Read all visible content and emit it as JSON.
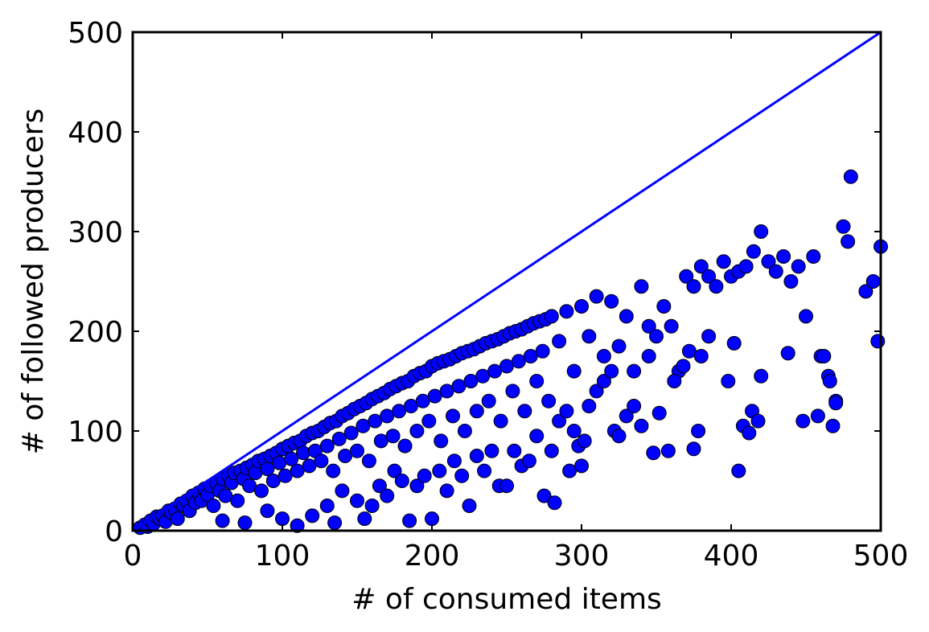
{
  "chart_data": {
    "type": "scatter",
    "title": "",
    "xlabel": "# of consumed items",
    "ylabel": "# of followed producers",
    "xlim": [
      0,
      500
    ],
    "ylim": [
      0,
      500
    ],
    "xticks": [
      "0",
      "100",
      "200",
      "300",
      "400",
      "500"
    ],
    "yticks": [
      "0",
      "100",
      "200",
      "300",
      "400",
      "500"
    ],
    "grid": false,
    "legend": "none",
    "colors": {
      "marker_fill": "#0000ff",
      "marker_edge": "#000000",
      "line": "#0000ff"
    },
    "reference_line": {
      "type": "y=x",
      "points": [
        [
          0,
          0
        ],
        [
          500,
          500
        ]
      ]
    },
    "series": [
      {
        "points": [
          [
            5,
            3
          ],
          [
            8,
            6
          ],
          [
            10,
            4
          ],
          [
            12,
            10
          ],
          [
            14,
            7
          ],
          [
            16,
            14
          ],
          [
            18,
            12
          ],
          [
            20,
            15
          ],
          [
            22,
            9
          ],
          [
            24,
            20
          ],
          [
            26,
            18
          ],
          [
            28,
            22
          ],
          [
            30,
            12
          ],
          [
            32,
            27
          ],
          [
            34,
            25
          ],
          [
            36,
            30
          ],
          [
            38,
            20
          ],
          [
            40,
            35
          ],
          [
            42,
            28
          ],
          [
            44,
            38
          ],
          [
            46,
            30
          ],
          [
            48,
            42
          ],
          [
            50,
            36
          ],
          [
            52,
            45
          ],
          [
            54,
            25
          ],
          [
            56,
            48
          ],
          [
            58,
            40
          ],
          [
            60,
            52
          ],
          [
            62,
            35
          ],
          [
            64,
            55
          ],
          [
            66,
            48
          ],
          [
            68,
            58
          ],
          [
            70,
            30
          ],
          [
            72,
            60
          ],
          [
            74,
            52
          ],
          [
            76,
            63
          ],
          [
            78,
            45
          ],
          [
            80,
            66
          ],
          [
            82,
            58
          ],
          [
            84,
            70
          ],
          [
            86,
            40
          ],
          [
            88,
            72
          ],
          [
            90,
            62
          ],
          [
            92,
            75
          ],
          [
            94,
            50
          ],
          [
            96,
            78
          ],
          [
            98,
            68
          ],
          [
            100,
            82
          ],
          [
            102,
            55
          ],
          [
            104,
            85
          ],
          [
            106,
            72
          ],
          [
            108,
            88
          ],
          [
            110,
            60
          ],
          [
            112,
            90
          ],
          [
            114,
            78
          ],
          [
            116,
            95
          ],
          [
            118,
            65
          ],
          [
            120,
            98
          ],
          [
            122,
            80
          ],
          [
            124,
            100
          ],
          [
            126,
            70
          ],
          [
            128,
            104
          ],
          [
            130,
            85
          ],
          [
            132,
            108
          ],
          [
            134,
            60
          ],
          [
            136,
            110
          ],
          [
            138,
            92
          ],
          [
            140,
            115
          ],
          [
            142,
            75
          ],
          [
            144,
            118
          ],
          [
            146,
            98
          ],
          [
            148,
            122
          ],
          [
            150,
            80
          ],
          [
            152,
            125
          ],
          [
            154,
            105
          ],
          [
            156,
            128
          ],
          [
            158,
            70
          ],
          [
            160,
            132
          ],
          [
            162,
            110
          ],
          [
            164,
            135
          ],
          [
            166,
            90
          ],
          [
            168,
            138
          ],
          [
            170,
            115
          ],
          [
            172,
            142
          ],
          [
            174,
            95
          ],
          [
            176,
            145
          ],
          [
            178,
            120
          ],
          [
            180,
            148
          ],
          [
            182,
            85
          ],
          [
            184,
            150
          ],
          [
            186,
            125
          ],
          [
            188,
            155
          ],
          [
            190,
            100
          ],
          [
            192,
            158
          ],
          [
            194,
            130
          ],
          [
            196,
            160
          ],
          [
            198,
            110
          ],
          [
            200,
            165
          ],
          [
            202,
            135
          ],
          [
            204,
            168
          ],
          [
            206,
            90
          ],
          [
            208,
            170
          ],
          [
            210,
            140
          ],
          [
            212,
            172
          ],
          [
            214,
            115
          ],
          [
            216,
            175
          ],
          [
            218,
            145
          ],
          [
            220,
            178
          ],
          [
            222,
            100
          ],
          [
            224,
            180
          ],
          [
            226,
            150
          ],
          [
            228,
            182
          ],
          [
            230,
            120
          ],
          [
            232,
            185
          ],
          [
            234,
            155
          ],
          [
            236,
            188
          ],
          [
            238,
            130
          ],
          [
            240,
            190
          ],
          [
            242,
            160
          ],
          [
            244,
            192
          ],
          [
            246,
            110
          ],
          [
            248,
            195
          ],
          [
            250,
            165
          ],
          [
            252,
            198
          ],
          [
            254,
            140
          ],
          [
            256,
            200
          ],
          [
            258,
            170
          ],
          [
            260,
            202
          ],
          [
            262,
            120
          ],
          [
            264,
            205
          ],
          [
            266,
            175
          ],
          [
            268,
            208
          ],
          [
            270,
            150
          ],
          [
            272,
            210
          ],
          [
            274,
            180
          ],
          [
            276,
            212
          ],
          [
            278,
            130
          ],
          [
            280,
            215
          ],
          [
            285,
            190
          ],
          [
            290,
            220
          ],
          [
            295,
            160
          ],
          [
            300,
            225
          ],
          [
            305,
            195
          ],
          [
            310,
            235
          ],
          [
            315,
            175
          ],
          [
            320,
            230
          ],
          [
            325,
            185
          ],
          [
            330,
            215
          ],
          [
            335,
            160
          ],
          [
            340,
            245
          ],
          [
            345,
            205
          ],
          [
            350,
            195
          ],
          [
            355,
            225
          ],
          [
            360,
            205
          ],
          [
            365,
            160
          ],
          [
            370,
            255
          ],
          [
            375,
            245
          ],
          [
            380,
            265
          ],
          [
            385,
            255
          ],
          [
            390,
            245
          ],
          [
            395,
            270
          ],
          [
            400,
            255
          ],
          [
            405,
            260
          ],
          [
            410,
            265
          ],
          [
            415,
            280
          ],
          [
            420,
            300
          ],
          [
            425,
            270
          ],
          [
            430,
            260
          ],
          [
            435,
            275
          ],
          [
            440,
            250
          ],
          [
            445,
            265
          ],
          [
            450,
            215
          ],
          [
            455,
            275
          ],
          [
            460,
            175
          ],
          [
            465,
            155
          ],
          [
            470,
            130
          ],
          [
            475,
            305
          ],
          [
            478,
            290
          ],
          [
            480,
            355
          ],
          [
            490,
            240
          ],
          [
            495,
            250
          ],
          [
            498,
            190
          ],
          [
            500,
            285
          ],
          [
            60,
            10
          ],
          [
            75,
            8
          ],
          [
            90,
            20
          ],
          [
            100,
            12
          ],
          [
            110,
            5
          ],
          [
            120,
            15
          ],
          [
            130,
            25
          ],
          [
            135,
            8
          ],
          [
            140,
            40
          ],
          [
            150,
            30
          ],
          [
            155,
            12
          ],
          [
            160,
            25
          ],
          [
            165,
            45
          ],
          [
            170,
            35
          ],
          [
            175,
            60
          ],
          [
            180,
            50
          ],
          [
            185,
            10
          ],
          [
            190,
            45
          ],
          [
            195,
            55
          ],
          [
            200,
            12
          ],
          [
            205,
            60
          ],
          [
            210,
            40
          ],
          [
            215,
            70
          ],
          [
            220,
            55
          ],
          [
            225,
            25
          ],
          [
            230,
            75
          ],
          [
            235,
            60
          ],
          [
            240,
            80
          ],
          [
            245,
            45
          ],
          [
            250,
            45
          ],
          [
            255,
            80
          ],
          [
            260,
            65
          ],
          [
            265,
            70
          ],
          [
            270,
            95
          ],
          [
            275,
            35
          ],
          [
            280,
            80
          ],
          [
            282,
            28
          ],
          [
            285,
            110
          ],
          [
            290,
            120
          ],
          [
            292,
            60
          ],
          [
            295,
            100
          ],
          [
            298,
            85
          ],
          [
            300,
            65
          ],
          [
            302,
            90
          ],
          [
            305,
            125
          ],
          [
            310,
            140
          ],
          [
            315,
            150
          ],
          [
            320,
            160
          ],
          [
            322,
            100
          ],
          [
            325,
            95
          ],
          [
            330,
            115
          ],
          [
            335,
            125
          ],
          [
            340,
            105
          ],
          [
            345,
            175
          ],
          [
            348,
            78
          ],
          [
            352,
            118
          ],
          [
            358,
            80
          ],
          [
            362,
            150
          ],
          [
            368,
            165
          ],
          [
            372,
            180
          ],
          [
            375,
            82
          ],
          [
            378,
            100
          ],
          [
            380,
            175
          ],
          [
            385,
            195
          ],
          [
            398,
            150
          ],
          [
            402,
            188
          ],
          [
            405,
            60
          ],
          [
            408,
            105
          ],
          [
            412,
            98
          ],
          [
            414,
            120
          ],
          [
            418,
            110
          ],
          [
            420,
            155
          ],
          [
            438,
            178
          ],
          [
            448,
            110
          ],
          [
            458,
            115
          ],
          [
            462,
            175
          ],
          [
            466,
            150
          ],
          [
            468,
            105
          ],
          [
            470,
            128
          ]
        ]
      }
    ]
  }
}
